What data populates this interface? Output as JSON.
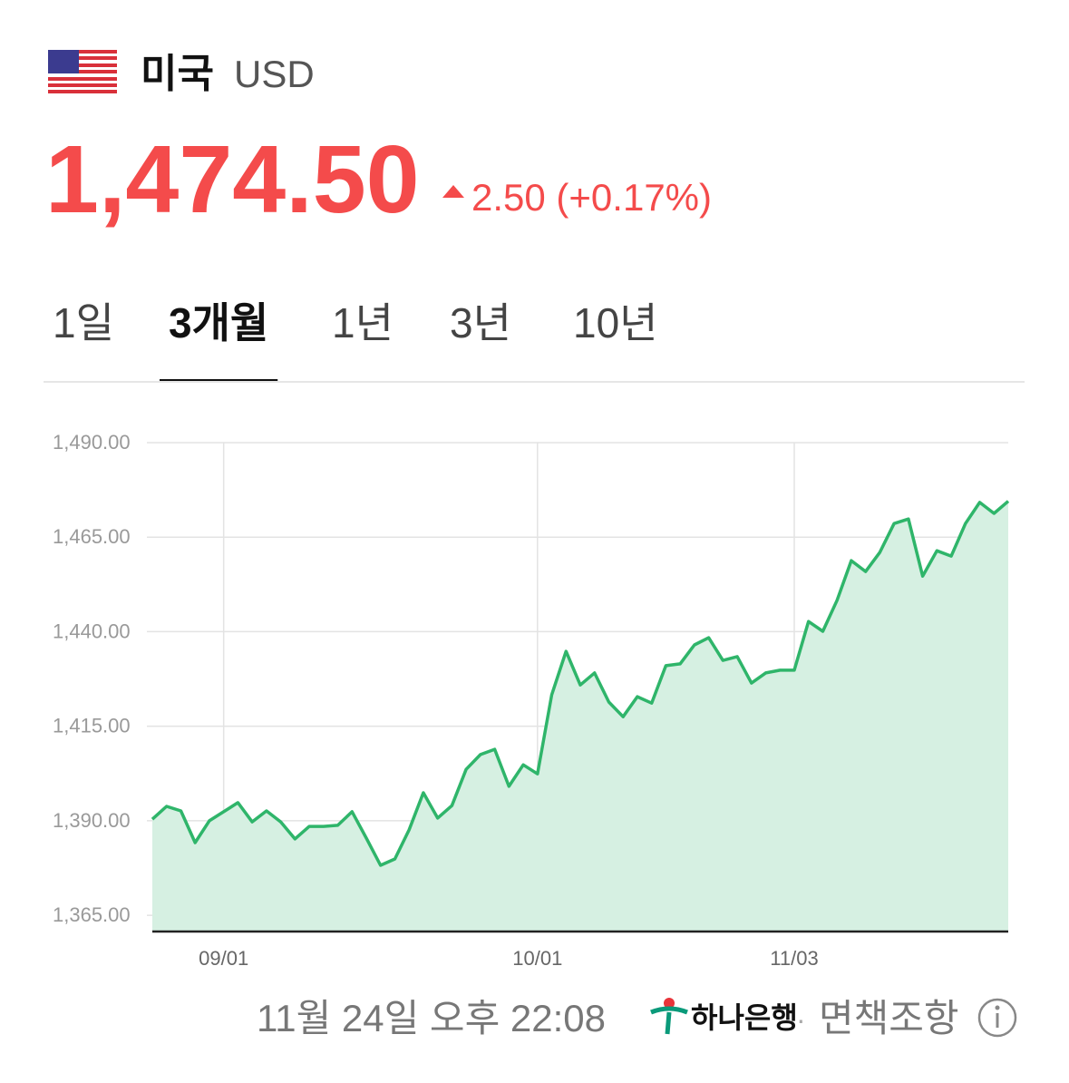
{
  "header": {
    "country": "미국",
    "currency": "USD"
  },
  "quote": {
    "price": "1,474.50",
    "change": "2.50 (+0.17%)"
  },
  "tabs": {
    "items": [
      "1일",
      "3개월",
      "1년",
      "3년",
      "10년"
    ],
    "selected": 1
  },
  "chart_data": {
    "type": "area",
    "color": "#2fb56a",
    "fill": "#d6f0e2",
    "grid": true,
    "categories": [
      null,
      null,
      null,
      null,
      null,
      "09/01",
      null,
      null,
      null,
      null,
      null,
      null,
      null,
      null,
      null,
      null,
      null,
      null,
      null,
      null,
      null,
      null,
      null,
      null,
      null,
      null,
      null,
      "10/01",
      null,
      null,
      null,
      null,
      null,
      null,
      null,
      null,
      null,
      null,
      null,
      null,
      null,
      null,
      null,
      null,
      null,
      "11/03",
      null,
      null,
      null,
      null,
      null,
      null,
      null,
      null,
      null,
      null,
      null,
      null,
      null,
      null,
      null
    ],
    "values": [
      1390.4,
      1393.8,
      1392.6,
      1384.2,
      1390.0,
      1392.4,
      1394.8,
      1389.7,
      1392.6,
      1389.7,
      1385.2,
      1388.5,
      1388.5,
      1388.8,
      1392.4,
      1385.4,
      1378.2,
      1379.9,
      1387.6,
      1397.4,
      1390.7,
      1394.0,
      1403.6,
      1407.5,
      1408.9,
      1399.1,
      1404.8,
      1402.4,
      1423.3,
      1434.8,
      1425.9,
      1429.1,
      1421.4,
      1417.5,
      1422.8,
      1421.1,
      1431.0,
      1431.5,
      1436.5,
      1438.4,
      1432.4,
      1433.4,
      1426.4,
      1429.1,
      1429.8,
      1429.8,
      1442.7,
      1440.1,
      1448.3,
      1458.8,
      1455.9,
      1461.0,
      1468.6,
      1469.8,
      1454.7,
      1461.4,
      1460.0,
      1468.6,
      1474.2,
      1471.3,
      1474.5
    ],
    "ylim": [
      1360.7,
      1490
    ],
    "yticks": [
      {
        "value": 1365,
        "label": "1,365.00"
      },
      {
        "value": 1390,
        "label": "1,390.00"
      },
      {
        "value": 1415,
        "label": "1,415.00"
      },
      {
        "value": 1440,
        "label": "1,440.00"
      },
      {
        "value": 1465,
        "label": "1,465.00"
      },
      {
        "value": 1490,
        "label": "1,490.00"
      }
    ]
  },
  "footer": {
    "timestamp": "11월 24일 오후 22:08",
    "bank": "하나은행",
    "separator": "·",
    "disclaimer": "면책조항"
  }
}
